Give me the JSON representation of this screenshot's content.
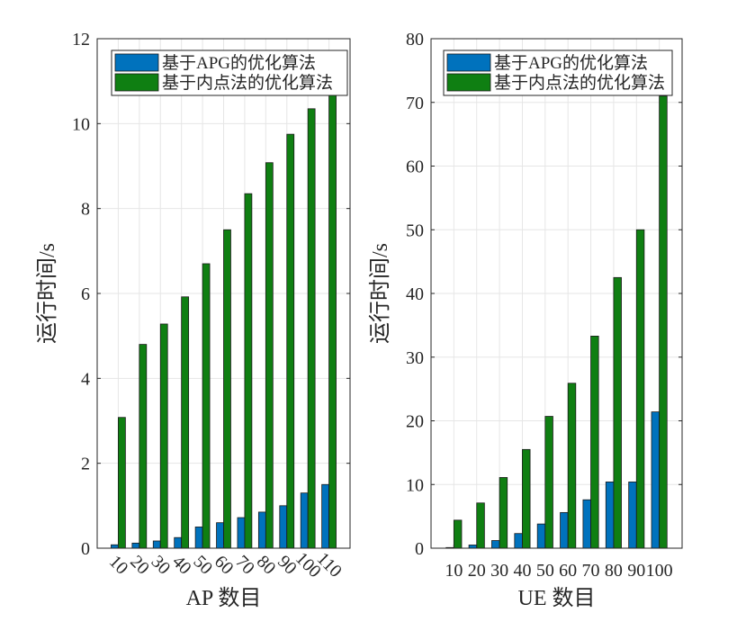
{
  "colors": {
    "apg": "#0072BD",
    "ipm": "#0F7F12",
    "grid": "#e6e6e6",
    "axis": "#262626"
  },
  "chart_data": [
    {
      "type": "bar",
      "categories": [
        "10",
        "20",
        "30",
        "40",
        "50",
        "60",
        "70",
        "80",
        "90",
        "100",
        "110"
      ],
      "series": [
        {
          "name": "基于APG的优化算法",
          "values": [
            0.08,
            0.12,
            0.17,
            0.25,
            0.5,
            0.6,
            0.72,
            0.85,
            1.0,
            1.3,
            1.5
          ]
        },
        {
          "name": "基于内点法的优化算法",
          "values": [
            3.08,
            4.8,
            5.28,
            5.92,
            6.7,
            7.5,
            8.35,
            9.08,
            9.75,
            10.35,
            10.9
          ]
        }
      ],
      "xlabel": "AP 数目",
      "ylabel": "运行时间/s",
      "ylim": [
        0,
        12
      ],
      "yticks": [
        0,
        2,
        4,
        6,
        8,
        10,
        12
      ],
      "xtick_rotation_deg": 45,
      "grid": true,
      "legend_position": "top-left"
    },
    {
      "type": "bar",
      "categories": [
        "10",
        "20",
        "30",
        "40",
        "50",
        "60",
        "70",
        "80",
        "90",
        "100"
      ],
      "series": [
        {
          "name": "基于APG的优化算法",
          "values": [
            0.1,
            0.5,
            1.2,
            2.3,
            3.8,
            5.6,
            7.6,
            10.4,
            10.4,
            21.4
          ]
        },
        {
          "name": "基于内点法的优化算法",
          "values": [
            4.4,
            7.1,
            11.1,
            15.5,
            20.7,
            25.9,
            33.3,
            42.5,
            50.0,
            71.0
          ]
        }
      ],
      "xlabel": "UE 数目",
      "ylabel": "运行时间/s",
      "ylim": [
        0,
        80
      ],
      "yticks": [
        0,
        10,
        20,
        30,
        40,
        50,
        60,
        70,
        80
      ],
      "xtick_rotation_deg": 0,
      "grid": true,
      "legend_position": "top-left"
    }
  ]
}
